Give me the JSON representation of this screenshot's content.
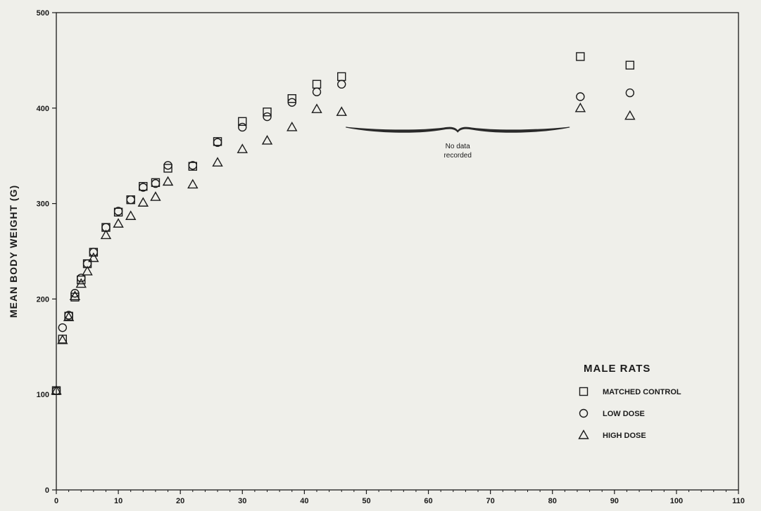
{
  "chart_data": {
    "type": "scatter",
    "title": "",
    "xlabel": "",
    "ylabel": "MEAN BODY WEIGHT (G)",
    "xlim": [
      0,
      110
    ],
    "ylim": [
      0,
      500
    ],
    "xticks": [
      0,
      10,
      20,
      30,
      40,
      50,
      60,
      70,
      80,
      90,
      100,
      110
    ],
    "yticks": [
      0,
      100,
      200,
      300,
      400,
      500
    ],
    "grid": false,
    "legend": {
      "title": "MALE RATS",
      "placement": "bottom-right",
      "entries": [
        "MATCHED CONTROL",
        "LOW DOSE",
        "HIGH DOSE"
      ]
    },
    "annotation": {
      "text_lines": [
        "No data",
        "recorded"
      ],
      "x_start": 46,
      "x_end": 83,
      "y": 380
    },
    "series": [
      {
        "name": "MATCHED CONTROL",
        "marker": "square",
        "x": [
          0,
          1,
          2,
          3,
          4,
          5,
          6,
          8,
          10,
          12,
          14,
          16,
          18,
          22,
          26,
          30,
          34,
          38,
          42,
          46,
          84.5,
          92.5
        ],
        "y": [
          104,
          158,
          182,
          202,
          220,
          237,
          249,
          275,
          291,
          304,
          318,
          322,
          337,
          339,
          365,
          386,
          396,
          410,
          425,
          433,
          454,
          445
        ]
      },
      {
        "name": "LOW DOSE",
        "marker": "circle",
        "x": [
          0,
          1,
          2,
          3,
          4,
          5,
          6,
          8,
          10,
          12,
          14,
          16,
          18,
          22,
          26,
          30,
          34,
          38,
          42,
          46,
          84.5,
          92.5
        ],
        "y": [
          104,
          170,
          183,
          206,
          222,
          237,
          249,
          275,
          292,
          304,
          317,
          321,
          340,
          340,
          364,
          380,
          391,
          406,
          417,
          425,
          412,
          416
        ]
      },
      {
        "name": "HIGH DOSE",
        "marker": "triangle",
        "x": [
          0,
          1,
          2,
          3,
          4,
          5,
          6,
          8,
          10,
          12,
          14,
          16,
          18,
          22,
          26,
          30,
          34,
          38,
          42,
          46,
          84.5,
          92.5
        ],
        "y": [
          104,
          157,
          181,
          203,
          216,
          229,
          243,
          267,
          279,
          287,
          301,
          307,
          323,
          320,
          343,
          357,
          366,
          380,
          399,
          396,
          400,
          392
        ]
      }
    ]
  }
}
